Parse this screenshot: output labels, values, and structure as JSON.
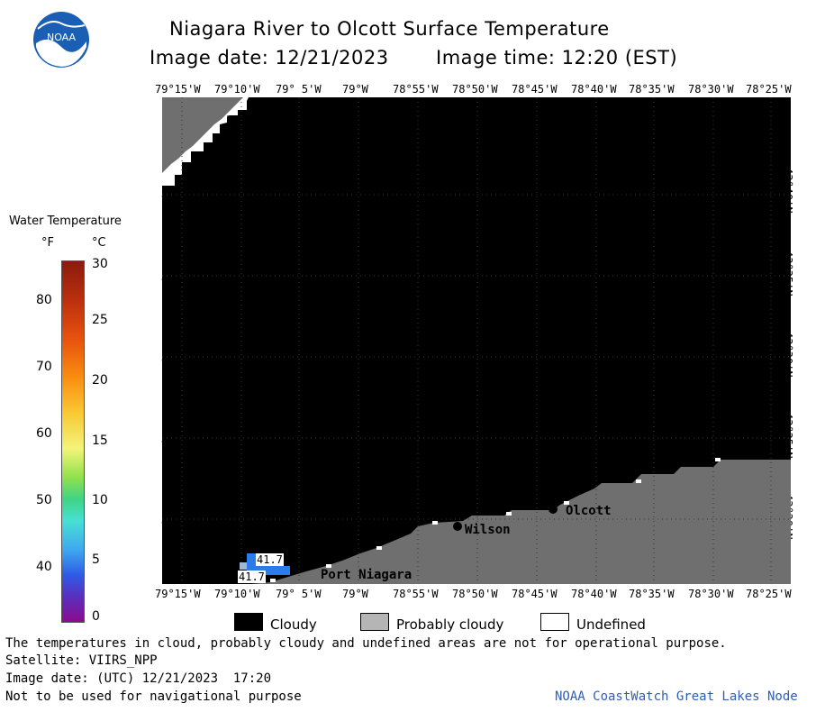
{
  "header": {
    "title": "Niagara River to Olcott Surface Temperature",
    "image_date_label": "Image date: 12/21/2023",
    "image_time_label": "Image time: 12:20 (EST)"
  },
  "logo": {
    "text": "NOAA"
  },
  "lon_ticks": [
    "79°15'W",
    "79°10'W",
    "79° 5'W",
    "79°W",
    "78°55'W",
    "78°50'W",
    "78°45'W",
    "78°40'W",
    "78°35'W",
    "78°30'W",
    "78°25'W"
  ],
  "lat_ticks": [
    "43°40'N",
    "43°35'N",
    "43°30'N",
    "43°25'N",
    "43°20'N"
  ],
  "colorbar": {
    "title": "Water Temperature",
    "unit_f": "°F",
    "unit_c": "°C",
    "f_ticks": [
      "80",
      "70",
      "60",
      "50",
      "40"
    ],
    "c_ticks": [
      "30",
      "25",
      "20",
      "15",
      "10",
      "5",
      "0"
    ]
  },
  "places": {
    "wilson": "Wilson",
    "olcott": "Olcott",
    "port_niagara": "Port Niagara"
  },
  "temp_labels": [
    "41.7",
    "41.7"
  ],
  "legend": {
    "cloudy": "Cloudy",
    "probably_cloudy": "Probably cloudy",
    "undefined": "Undefined"
  },
  "footer": {
    "disclaimer": "The temperatures in cloud, probably cloudy and undefined areas are not for operational purpose.",
    "satellite": "Satellite: VIIRS_NPP",
    "utc_date": "Image date: (UTC) 12/21/2023  17:20",
    "nav_warning": "Not to be used for navigational purpose",
    "credit": "NOAA CoastWatch Great Lakes Node"
  },
  "colors": {
    "cloudy": "#000000",
    "probably_cloudy": "#6f6f6f",
    "land": "#6f6f6f",
    "water_warm": "#2a7de8",
    "credit_text": "#2f5fb5"
  }
}
